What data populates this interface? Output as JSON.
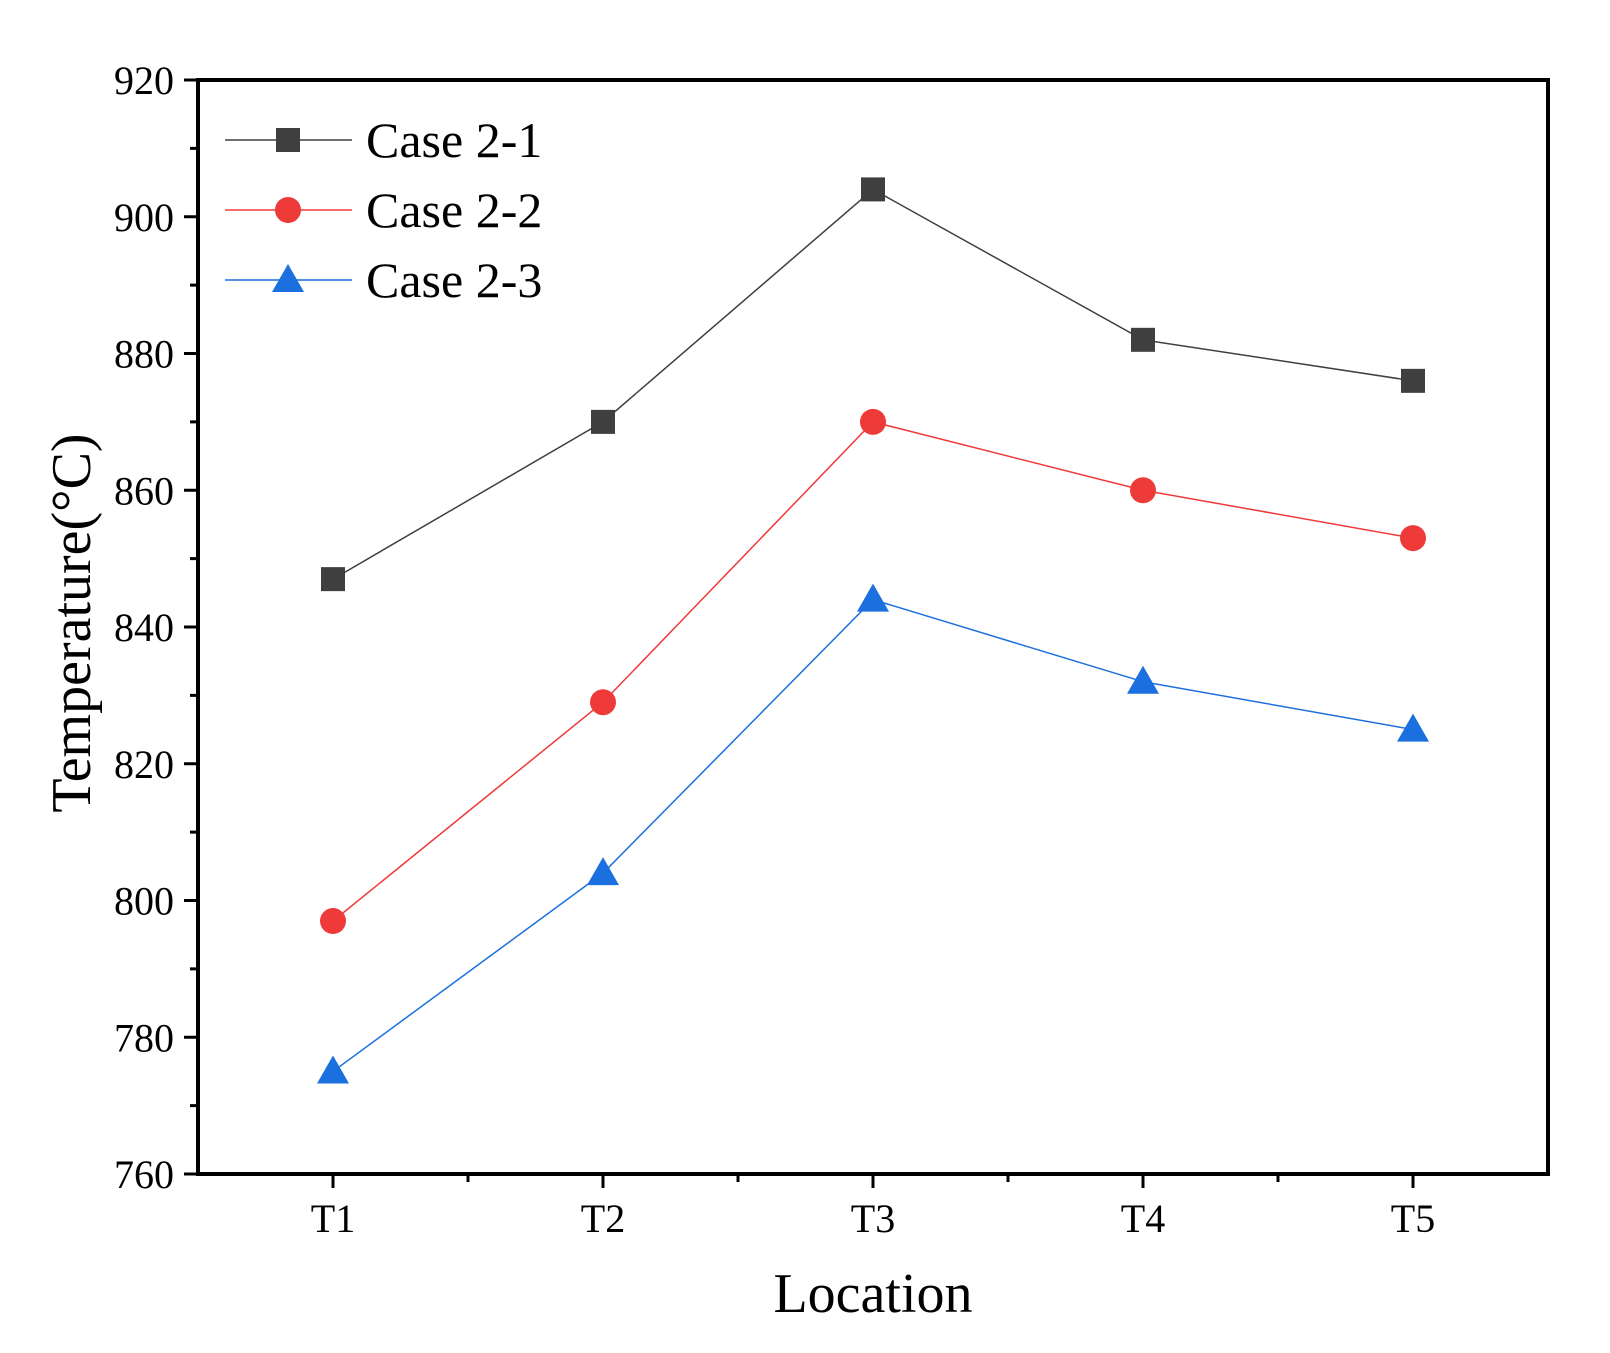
{
  "chart_data": {
    "type": "line",
    "title": "",
    "xlabel": "Location",
    "ylabel": "Temperature(°C)",
    "categories": [
      "T1",
      "T2",
      "T3",
      "T4",
      "T5"
    ],
    "ylim": [
      760,
      920
    ],
    "yticks": [
      760,
      780,
      800,
      820,
      840,
      860,
      880,
      900,
      920
    ],
    "grid": false,
    "legend_position": "top-left",
    "series": [
      {
        "name": "Case 2-1",
        "marker": "square",
        "color": "#3f3f3f",
        "values": [
          847,
          870,
          904,
          882,
          876
        ]
      },
      {
        "name": "Case 2-2",
        "marker": "circle",
        "color": "#ef3a3a",
        "values": [
          797,
          829,
          870,
          860,
          853
        ]
      },
      {
        "name": "Case 2-3",
        "marker": "triangle",
        "color": "#1c6fde",
        "values": [
          775,
          804,
          844,
          832,
          825
        ]
      }
    ]
  }
}
